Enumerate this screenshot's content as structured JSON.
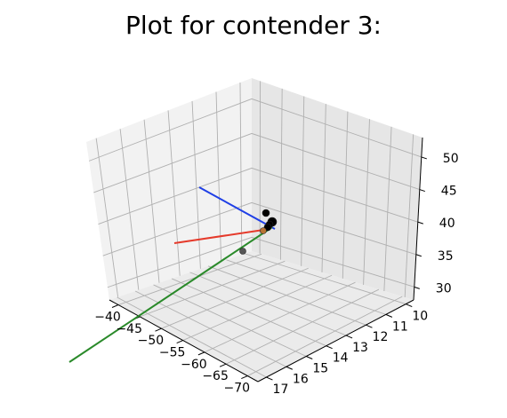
{
  "chart_data": {
    "type": "scatter3d",
    "title": "Plot for contender 3:",
    "xlabel": "",
    "ylabel": "",
    "zlabel": "",
    "x_ticks": [
      "−40",
      "−45",
      "−50",
      "−55",
      "−60",
      "−65",
      "−70"
    ],
    "y_ticks": [
      "10",
      "11",
      "12",
      "13",
      "14",
      "15",
      "16",
      "17"
    ],
    "z_ticks": [
      "30",
      "35",
      "40",
      "45",
      "50"
    ],
    "grid": true,
    "pane_color": "#f2f2f2",
    "lines": [
      {
        "color": "#1f3fe6",
        "label": ""
      },
      {
        "color": "#e53a2b",
        "label": ""
      },
      {
        "color": "#2a8a2a",
        "label": ""
      }
    ],
    "points": [
      {
        "color": "#000000"
      },
      {
        "color": "#000000"
      },
      {
        "color": "#000000"
      },
      {
        "color": "#000000"
      },
      {
        "color": "#b87333"
      },
      {
        "color": "#555555"
      }
    ]
  }
}
